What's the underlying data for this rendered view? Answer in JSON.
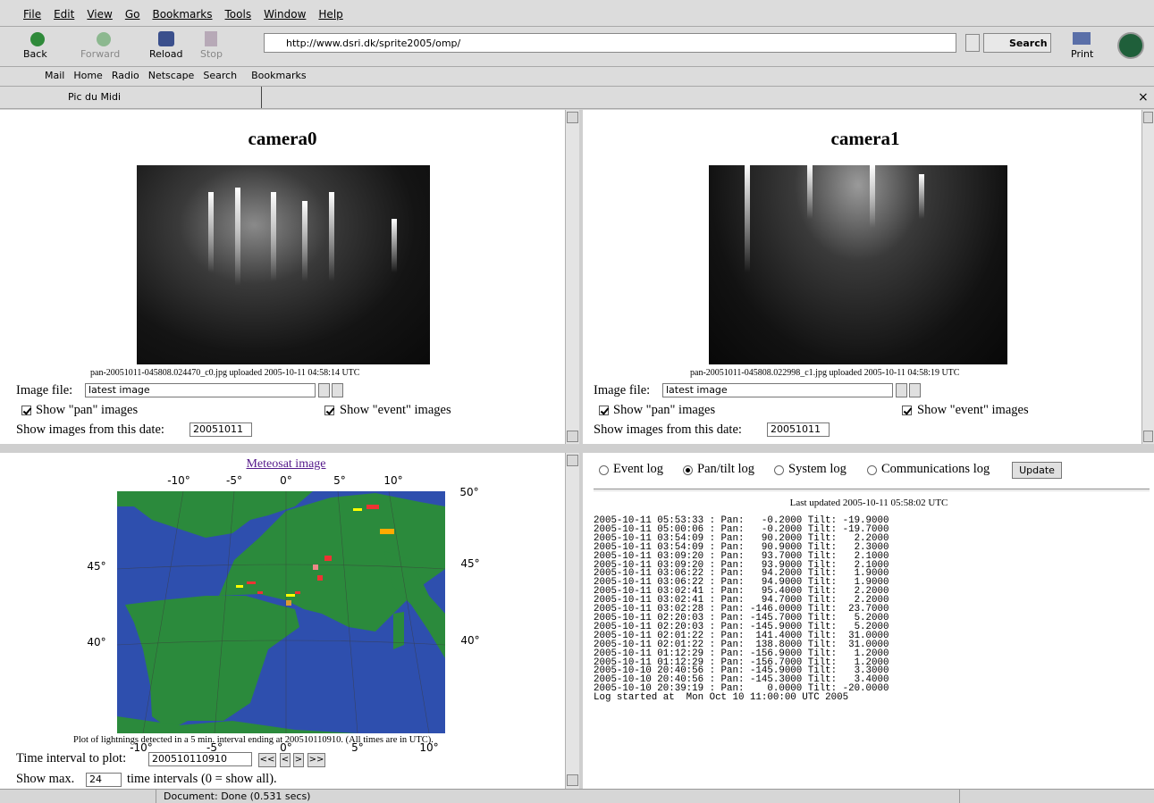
{
  "menu": [
    "File",
    "Edit",
    "View",
    "Go",
    "Bookmarks",
    "Tools",
    "Window",
    "Help"
  ],
  "toolbar": {
    "back": "Back",
    "forward": "Forward",
    "reload": "Reload",
    "stop": "Stop",
    "url": "http://www.dsri.dk/sprite2005/omp/",
    "search": "Search",
    "print": "Print"
  },
  "personal_bar": [
    "Mail",
    "Home",
    "Radio",
    "Netscape",
    "Search",
    "Bookmarks"
  ],
  "tab": {
    "title": "Pic du Midi",
    "close": "×"
  },
  "cameras": [
    {
      "title": "camera0",
      "caption": "pan-20051011-045808.024470_c0.jpg uploaded 2005-10-11 04:58:14 UTC",
      "image_file_label": "Image file:",
      "select": "latest image",
      "show_pan": "Show \"pan\" images",
      "show_event": "Show \"event\" images",
      "date_label": "Show images from this date:",
      "date": "20051011"
    },
    {
      "title": "camera1",
      "caption": "pan-20051011-045808.022998_c1.jpg uploaded 2005-10-11 04:58:19 UTC",
      "image_file_label": "Image file:",
      "select": "latest image",
      "show_pan": "Show \"pan\" images",
      "show_event": "Show \"event\" images",
      "date_label": "Show images from this date:",
      "date": "20051011"
    }
  ],
  "map": {
    "title": "Meteosat image",
    "top_labels": [
      "-10°",
      "-5°",
      "0°",
      "5°",
      "10°",
      "50°"
    ],
    "left_labels": [
      "45°",
      "40°"
    ],
    "right_labels": [
      "45°",
      "40°"
    ],
    "bottom_labels": [
      "-10°",
      "-5°",
      "0°",
      "5°",
      "10°"
    ],
    "caption": "Plot of lightnings detected in a 5 min. interval ending at 200510110910. (All times are in UTC).",
    "time_label": "Time interval to plot:",
    "time_value": "200510110910",
    "nav": [
      "<<",
      "<",
      ">",
      ">>"
    ],
    "show_max_label": "Show max.",
    "show_max_value": "24",
    "show_max_suffix": "time intervals (0 = show all)."
  },
  "log": {
    "radios": [
      "Event log",
      "Pan/tilt log",
      "System log",
      "Communications log"
    ],
    "update": "Update",
    "updated": "Last updated 2005-10-11 05:58:02 UTC",
    "lines": [
      "2005-10-11 05:53:33 : Pan:   -0.2000 Tilt: -19.9000",
      "2005-10-11 05:00:06 : Pan:   -0.2000 Tilt: -19.7000",
      "2005-10-11 03:54:09 : Pan:   90.2000 Tilt:   2.2000",
      "2005-10-11 03:54:09 : Pan:   90.9000 Tilt:   2.3000",
      "2005-10-11 03:09:20 : Pan:   93.7000 Tilt:   2.1000",
      "2005-10-11 03:09:20 : Pan:   93.9000 Tilt:   2.1000",
      "2005-10-11 03:06:22 : Pan:   94.2000 Tilt:   1.9000",
      "2005-10-11 03:06:22 : Pan:   94.9000 Tilt:   1.9000",
      "2005-10-11 03:02:41 : Pan:   95.4000 Tilt:   2.2000",
      "2005-10-11 03:02:41 : Pan:   94.7000 Tilt:   2.2000",
      "2005-10-11 03:02:28 : Pan: -146.0000 Tilt:  23.7000",
      "2005-10-11 02:20:03 : Pan: -145.7000 Tilt:   5.2000",
      "2005-10-11 02:20:03 : Pan: -145.9000 Tilt:   5.2000",
      "2005-10-11 02:01:22 : Pan:  141.4000 Tilt:  31.0000",
      "2005-10-11 02:01:22 : Pan:  138.8000 Tilt:  31.0000",
      "2005-10-11 01:12:29 : Pan: -156.9000 Tilt:   1.2000",
      "2005-10-11 01:12:29 : Pan: -156.7000 Tilt:   1.2000",
      "2005-10-10 20:40:56 : Pan: -145.9000 Tilt:   3.3000",
      "2005-10-10 20:40:56 : Pan: -145.3000 Tilt:   3.4000",
      "2005-10-10 20:39:19 : Pan:    0.0000 Tilt: -20.0000",
      "Log started at  Mon Oct 10 11:00:00 UTC 2005"
    ]
  },
  "status": "Document: Done (0.531 secs)"
}
